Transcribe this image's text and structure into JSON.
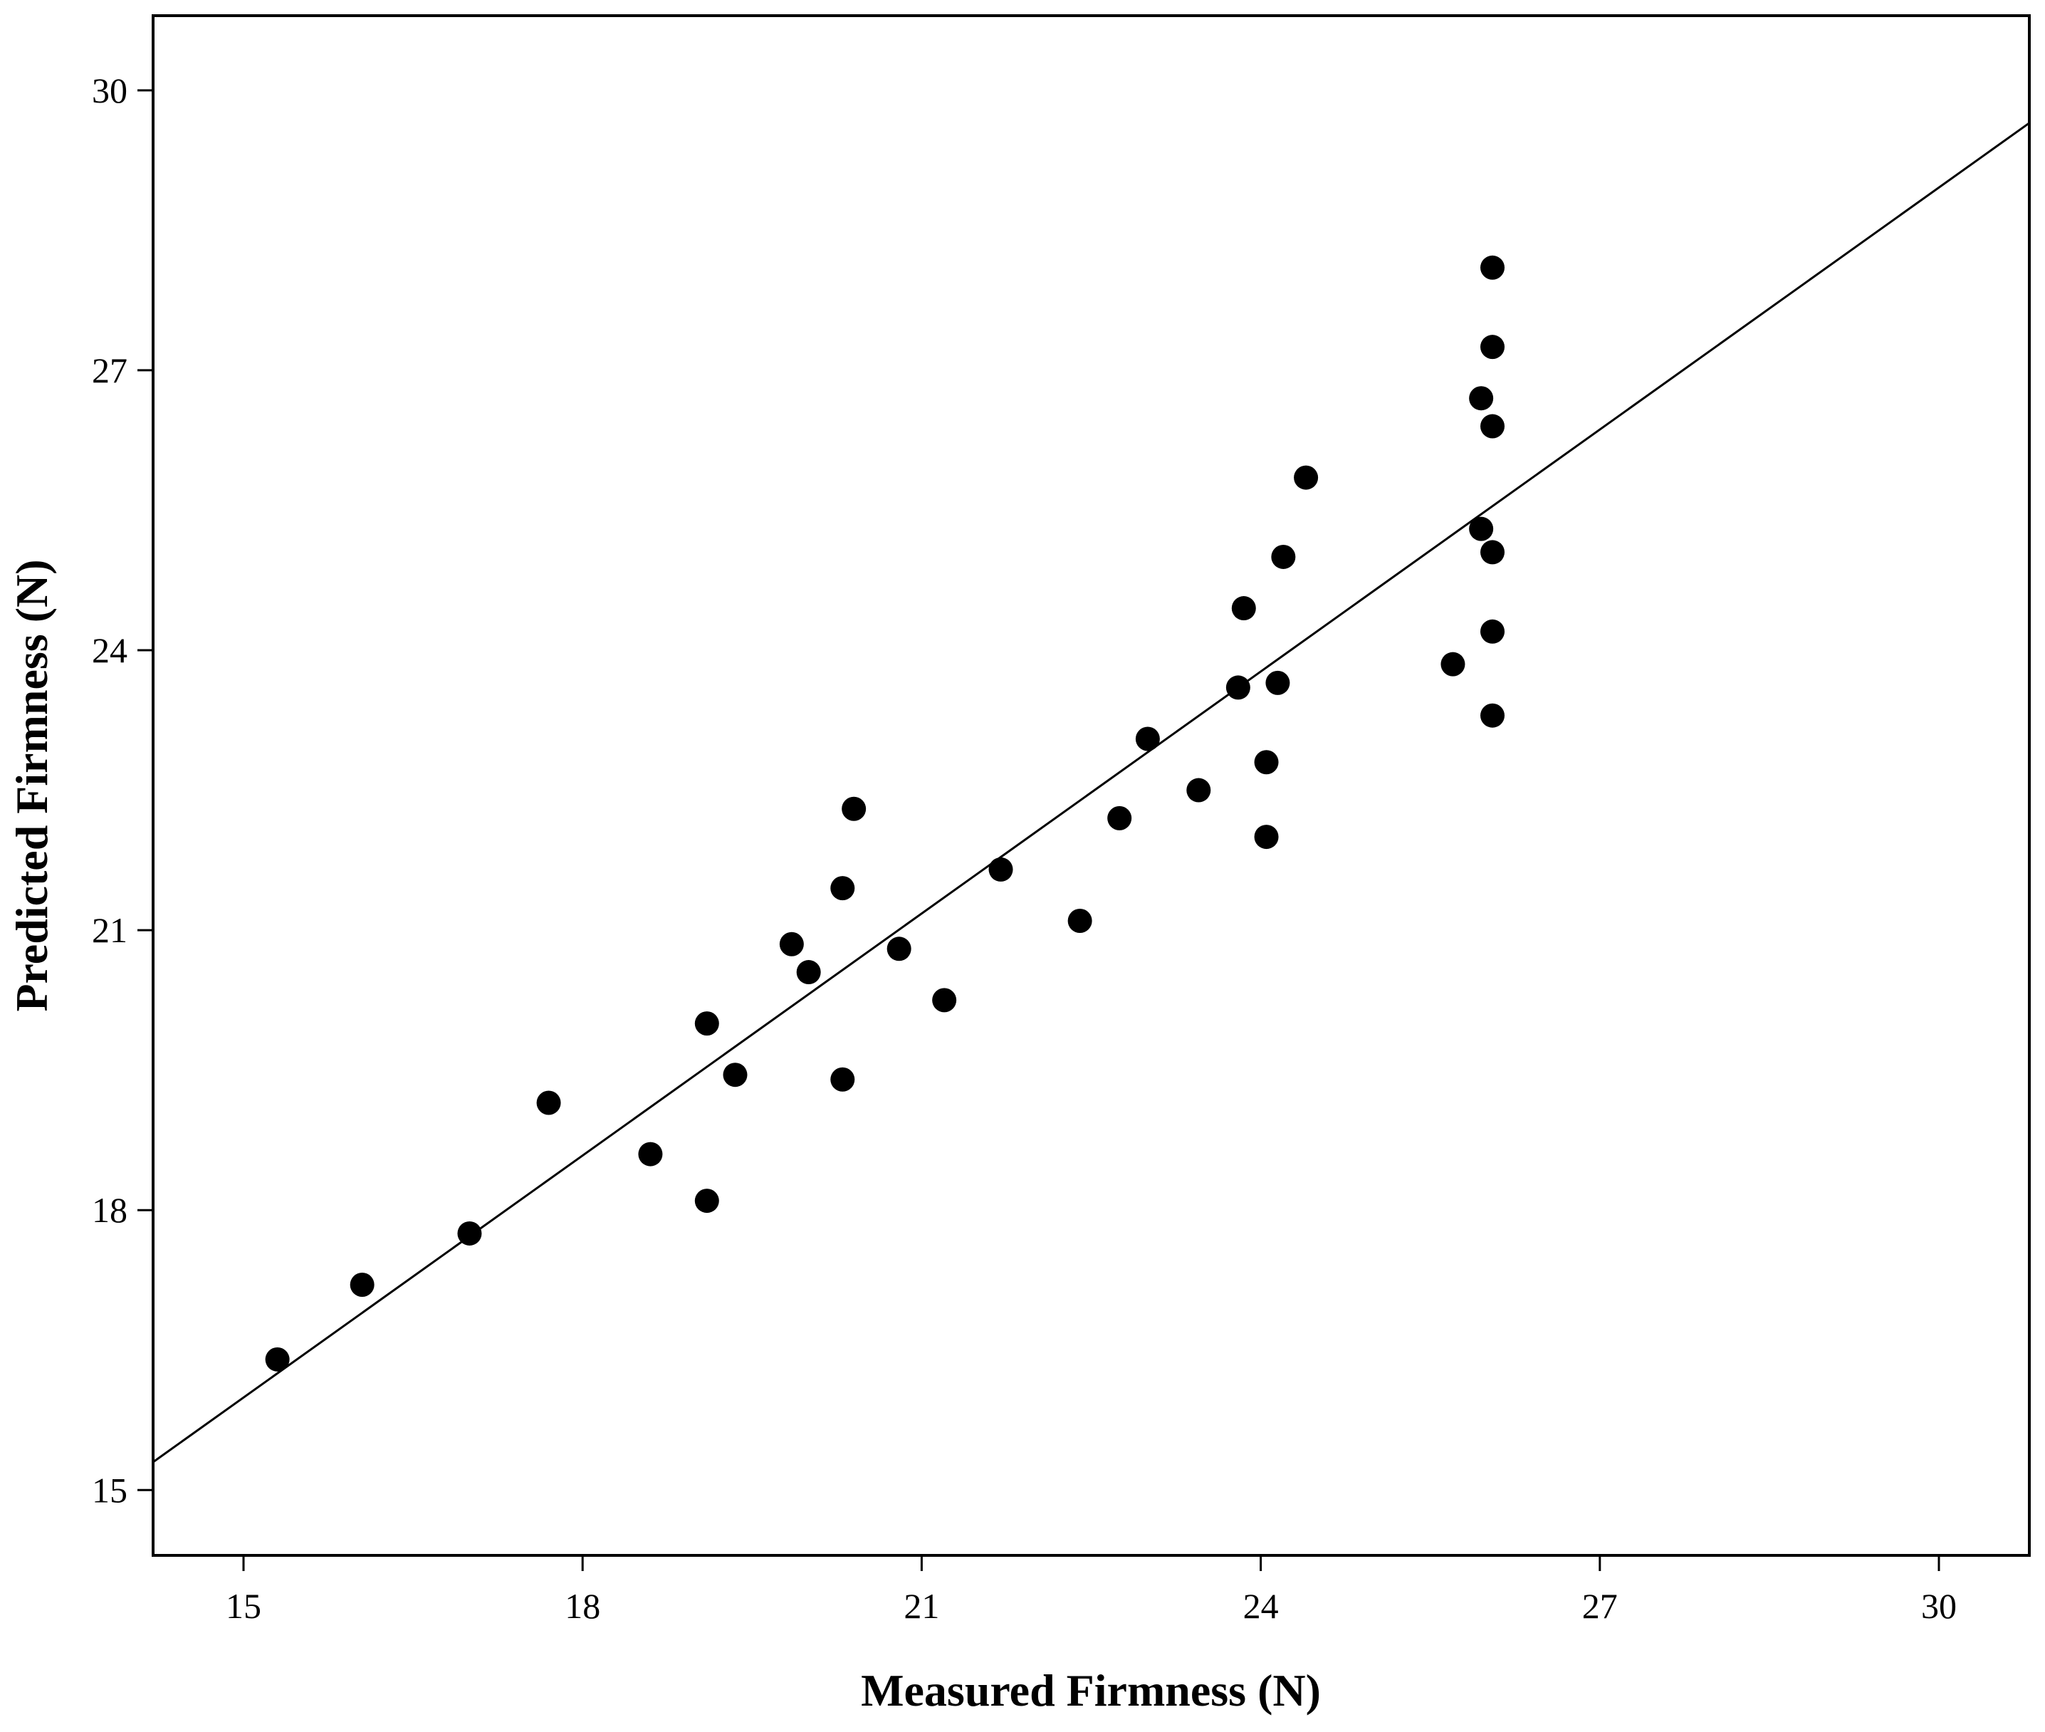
{
  "chart_data": {
    "type": "scatter",
    "title": "",
    "xlabel": "Measured Firmness (N)",
    "ylabel": "Predicted Firmness (N)",
    "xlim": [
      14.2,
      30.8
    ],
    "ylim": [
      14.3,
      30.8
    ],
    "xticks": [
      15,
      18,
      21,
      24,
      27,
      30
    ],
    "yticks": [
      15,
      18,
      21,
      24,
      27,
      30
    ],
    "xtick_labels": [
      "15",
      "18",
      "21",
      "24",
      "27",
      "30"
    ],
    "ytick_labels": [
      "15",
      "18",
      "21",
      "24",
      "27",
      "30"
    ],
    "grid": false,
    "legend": "none",
    "marker_color": "#000000",
    "line_color": "#000000",
    "fit_line": {
      "x": [
        14.2,
        30.8
      ],
      "y": [
        15.3,
        29.65
      ]
    },
    "points": [
      {
        "x": 15.3,
        "y": 16.4
      },
      {
        "x": 16.05,
        "y": 17.2
      },
      {
        "x": 17.0,
        "y": 17.75
      },
      {
        "x": 17.7,
        "y": 19.15
      },
      {
        "x": 18.6,
        "y": 18.6
      },
      {
        "x": 19.1,
        "y": 18.1
      },
      {
        "x": 19.1,
        "y": 20.0
      },
      {
        "x": 19.35,
        "y": 19.45
      },
      {
        "x": 19.85,
        "y": 20.85
      },
      {
        "x": 20.0,
        "y": 20.55
      },
      {
        "x": 20.3,
        "y": 19.4
      },
      {
        "x": 20.3,
        "y": 21.45
      },
      {
        "x": 20.4,
        "y": 22.3
      },
      {
        "x": 20.8,
        "y": 20.8
      },
      {
        "x": 21.2,
        "y": 20.25
      },
      {
        "x": 21.7,
        "y": 21.65
      },
      {
        "x": 22.4,
        "y": 21.1
      },
      {
        "x": 22.75,
        "y": 22.2
      },
      {
        "x": 23.0,
        "y": 23.05
      },
      {
        "x": 23.45,
        "y": 22.5
      },
      {
        "x": 23.8,
        "y": 23.6
      },
      {
        "x": 23.85,
        "y": 24.45
      },
      {
        "x": 24.05,
        "y": 22.0
      },
      {
        "x": 24.05,
        "y": 22.8
      },
      {
        "x": 24.15,
        "y": 23.65
      },
      {
        "x": 24.2,
        "y": 25.0
      },
      {
        "x": 24.4,
        "y": 25.85
      },
      {
        "x": 25.7,
        "y": 23.85
      },
      {
        "x": 25.95,
        "y": 25.3
      },
      {
        "x": 25.95,
        "y": 26.7
      },
      {
        "x": 26.05,
        "y": 23.3
      },
      {
        "x": 26.05,
        "y": 24.2
      },
      {
        "x": 26.05,
        "y": 25.05
      },
      {
        "x": 26.05,
        "y": 26.4
      },
      {
        "x": 26.05,
        "y": 27.25
      },
      {
        "x": 26.05,
        "y": 28.1
      }
    ]
  }
}
